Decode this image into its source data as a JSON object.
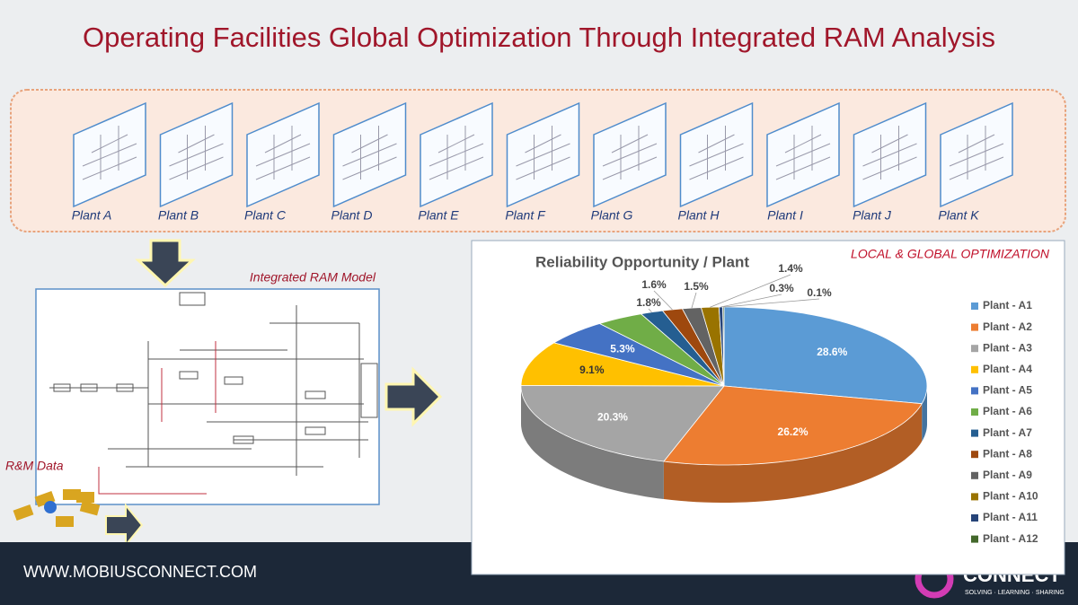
{
  "header": {
    "title": "Operating Facilities Global Optimization Through Integrated RAM Analysis"
  },
  "plants": [
    "Plant A",
    "Plant B",
    "Plant C",
    "Plant D",
    "Plant E",
    "Plant F",
    "Plant G",
    "Plant H",
    "Plant I",
    "Plant J",
    "Plant K"
  ],
  "model_label": "Integrated RAM Model",
  "data_label": "R&M Data",
  "footer": {
    "url": "WWW.MOBIUSCONNECT.COM",
    "brand": "CONNECT",
    "tagline": "SOLVING · LEARNING · SHARING"
  },
  "chart_data": {
    "type": "pie3d",
    "title": "Reliability Opportunity / Plant",
    "annotation": "LOCAL & GLOBAL OPTIMIZATION",
    "categories": [
      "Plant - A1",
      "Plant - A2",
      "Plant - A3",
      "Plant - A4",
      "Plant - A5",
      "Plant - A6",
      "Plant - A7",
      "Plant - A8",
      "Plant - A9",
      "Plant - A10",
      "Plant - A11",
      "Plant - A12"
    ],
    "values": [
      28.6,
      26.2,
      20.3,
      9.1,
      5.3,
      3.8,
      1.8,
      1.6,
      1.5,
      1.4,
      0.3,
      0.1
    ],
    "value_labels": [
      "28.6%",
      "26.2%",
      "20.3%",
      "9.1%",
      "5.3%",
      null,
      "1.8%",
      "1.6%",
      "1.5%",
      "1.4%",
      "0.3%",
      "0.1%"
    ],
    "colors": [
      "#5b9bd5",
      "#ed7d31",
      "#a5a5a5",
      "#ffc000",
      "#4472c4",
      "#70ad47",
      "#255e91",
      "#9e480e",
      "#636363",
      "#997300",
      "#264478",
      "#43682b"
    ],
    "legend": "right"
  }
}
